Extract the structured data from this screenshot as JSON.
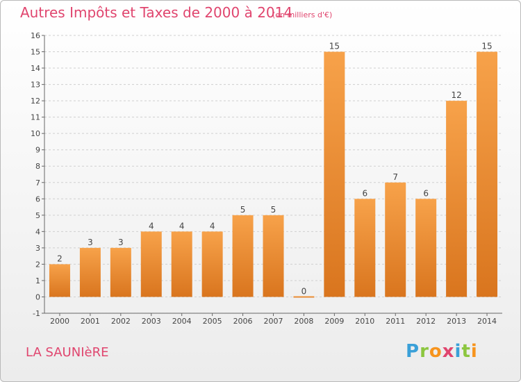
{
  "header": {
    "title": "Autres Impôts et Taxes de 2000 à 2014",
    "unit_note": "(en milliers d'€)"
  },
  "footer": {
    "commune": "LA SAUNIèRE",
    "logo": {
      "letters": [
        "P",
        "r",
        "o",
        "x",
        "i",
        "t",
        "i"
      ],
      "colors": [
        "#3aa0d8",
        "#8cc63f",
        "#f7941d",
        "#e0456e",
        "#3aa0d8",
        "#8cc63f",
        "#f7941d"
      ]
    }
  },
  "colors": {
    "title": "#e0456e",
    "bar_top": "#f7a24a",
    "bar_bottom": "#d9751e",
    "grid": "#cfcfcf"
  },
  "chart_data": {
    "type": "bar",
    "categories": [
      "2000",
      "2001",
      "2002",
      "2003",
      "2004",
      "2005",
      "2006",
      "2007",
      "2008",
      "2009",
      "2010",
      "2011",
      "2012",
      "2013",
      "2014"
    ],
    "values": [
      2,
      3,
      3,
      4,
      4,
      4,
      5,
      5,
      0,
      15,
      6,
      7,
      6,
      12,
      15
    ],
    "data_labels": [
      "2",
      "3",
      "3",
      "4",
      "4",
      "4",
      "5",
      "5",
      "0",
      "15",
      "6",
      "7",
      "6",
      "12",
      "15"
    ],
    "yticks": [
      "-1",
      "0",
      "1",
      "2",
      "3",
      "4",
      "5",
      "6",
      "7",
      "8",
      "9",
      "10",
      "11",
      "12",
      "13",
      "14",
      "15",
      "16"
    ],
    "ylim": [
      -1,
      16
    ],
    "grid": true,
    "xlabel": "",
    "ylabel": ""
  }
}
